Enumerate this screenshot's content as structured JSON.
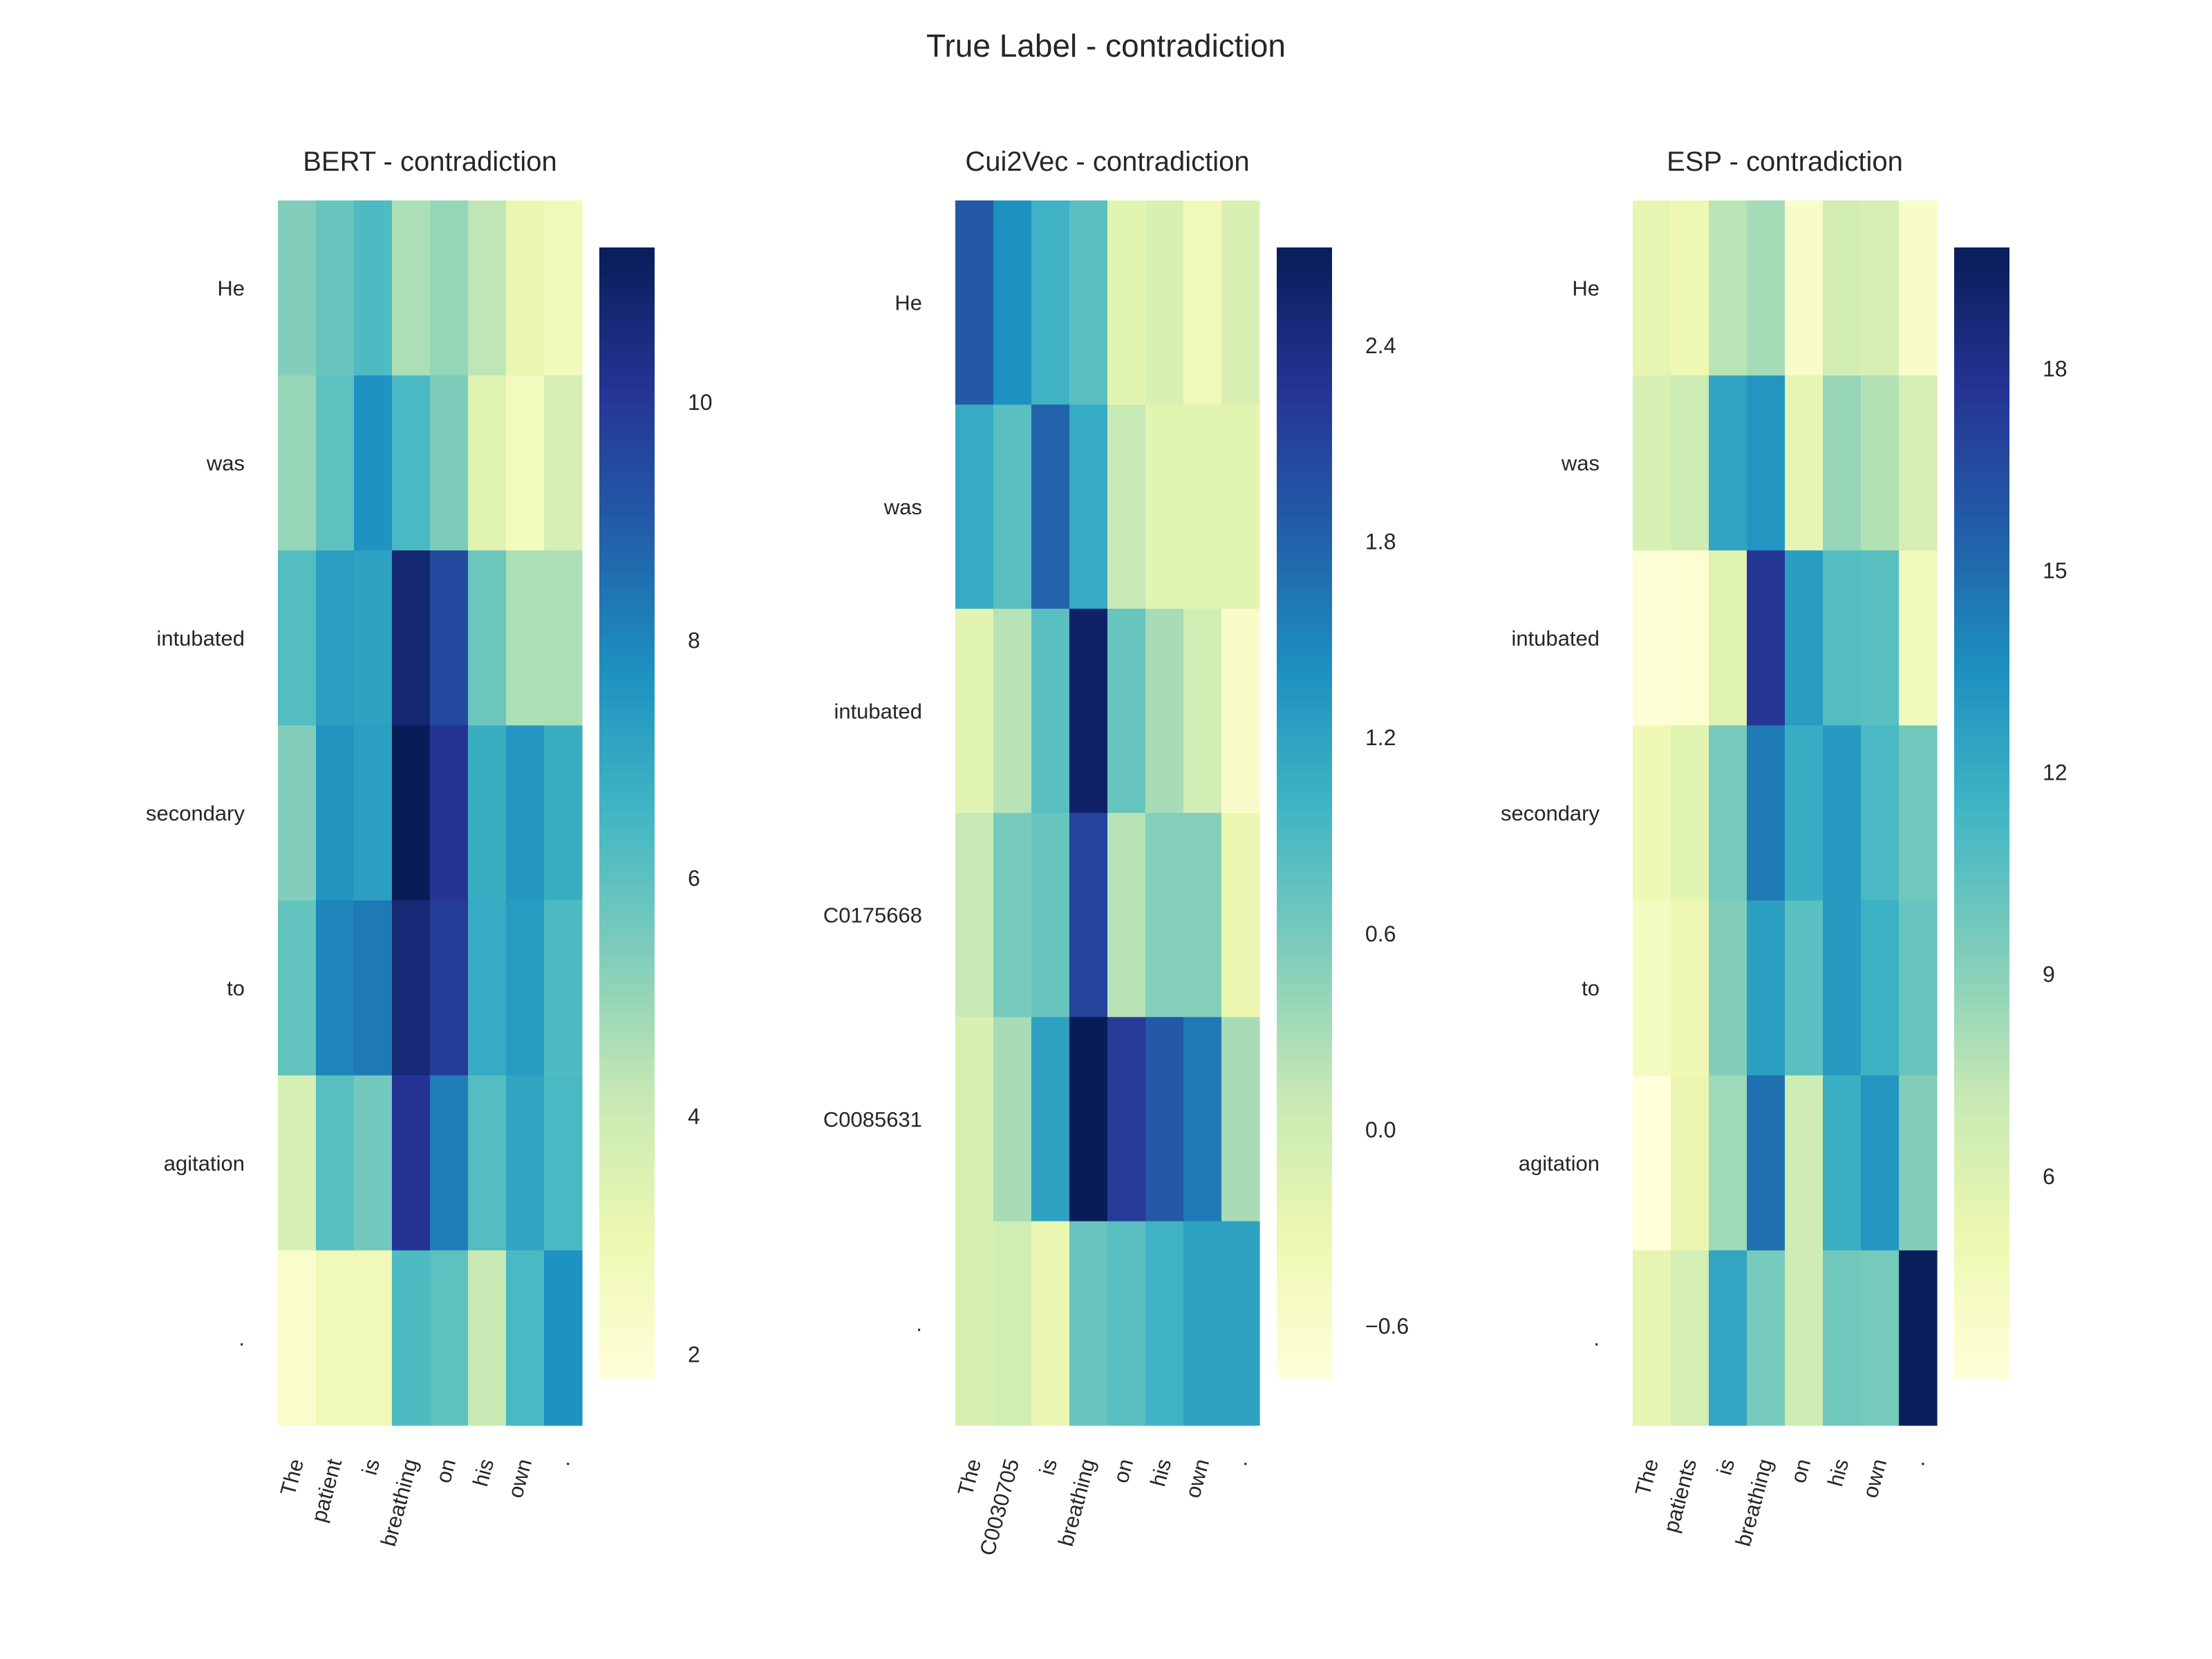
{
  "title": "True Label - contradiction",
  "chart_data": [
    {
      "type": "heatmap",
      "title": "BERT - contradiction",
      "x": [
        "The",
        "patient",
        "is",
        "breathing",
        "on",
        "his",
        "own",
        "."
      ],
      "y": [
        "He",
        "was",
        "intubated",
        "secondary",
        "to",
        "agitation",
        "."
      ],
      "values": [
        [
          5.3,
          5.8,
          6.3,
          4.6,
          5.0,
          4.3,
          3.1,
          2.7
        ],
        [
          5.0,
          6.0,
          7.7,
          6.4,
          5.4,
          3.4,
          2.6,
          3.7
        ],
        [
          6.2,
          7.3,
          7.2,
          10.8,
          9.5,
          5.7,
          4.6,
          4.6
        ],
        [
          5.3,
          7.6,
          7.3,
          11.3,
          10.1,
          6.8,
          7.5,
          6.8
        ],
        [
          5.9,
          8.0,
          8.3,
          10.7,
          9.9,
          6.9,
          7.4,
          6.3
        ],
        [
          3.7,
          6.1,
          5.6,
          10.1,
          8.2,
          6.2,
          7.1,
          6.4
        ],
        [
          2.2,
          2.8,
          2.8,
          6.3,
          6.0,
          4.1,
          6.4,
          7.7
        ]
      ],
      "colorbar": {
        "min": 1.8,
        "max": 11.3,
        "ticks": [
          2,
          4,
          6,
          8,
          10
        ]
      }
    },
    {
      "type": "heatmap",
      "title": "Cui2Vec - contradiction",
      "x": [
        "The",
        "C0030705",
        "is",
        "breathing",
        "on",
        "his",
        "own",
        "."
      ],
      "y": [
        "He",
        "was",
        "intubated",
        "C0175668",
        "C0085631",
        "."
      ],
      "values": [
        [
          1.9,
          1.4,
          1.0,
          0.8,
          -0.2,
          -0.1,
          -0.4,
          -0.1
        ],
        [
          1.1,
          0.8,
          1.8,
          1.1,
          0.1,
          -0.2,
          -0.2,
          -0.2
        ],
        [
          -0.2,
          0.2,
          0.8,
          2.6,
          0.7,
          0.3,
          0.0,
          -0.6
        ],
        [
          0.1,
          0.6,
          0.7,
          2.1,
          0.2,
          0.5,
          0.5,
          -0.3
        ],
        [
          -0.1,
          0.3,
          1.2,
          2.8,
          2.2,
          1.9,
          1.6,
          0.3
        ],
        [
          -0.1,
          0.0,
          -0.3,
          0.7,
          0.8,
          1.0,
          1.2,
          1.2
        ]
      ],
      "colorbar": {
        "min": -0.76,
        "max": 2.7,
        "ticks": [
          -0.6,
          0.0,
          0.6,
          1.2,
          1.8,
          2.4
        ]
      }
    },
    {
      "type": "heatmap",
      "title": "ESP - contradiction",
      "x": [
        "The",
        "patients",
        "is",
        "breathing",
        "on",
        "his",
        "own",
        "."
      ],
      "y": [
        "He",
        "was",
        "intubated",
        "secondary",
        "to",
        "agitation",
        "."
      ],
      "values": [
        [
          5.5,
          5.0,
          7.6,
          8.2,
          3.9,
          6.6,
          6.3,
          3.9
        ],
        [
          6.3,
          6.8,
          12.4,
          13.2,
          5.5,
          8.6,
          7.8,
          6.5
        ],
        [
          3.2,
          3.4,
          5.9,
          17.6,
          12.8,
          10.8,
          10.6,
          4.6
        ],
        [
          4.9,
          5.7,
          9.6,
          14.4,
          11.9,
          13.0,
          11.1,
          9.8
        ],
        [
          4.3,
          5.0,
          9.2,
          12.7,
          10.6,
          13.0,
          11.7,
          10.1
        ],
        [
          3.0,
          5.2,
          8.4,
          14.9,
          6.8,
          11.8,
          13.2,
          9.2
        ],
        [
          5.5,
          6.5,
          12.3,
          9.6,
          6.8,
          9.8,
          9.6,
          19.6
        ]
      ],
      "colorbar": {
        "min": 3.0,
        "max": 19.8,
        "ticks": [
          6,
          9,
          12,
          15,
          18
        ]
      }
    }
  ]
}
